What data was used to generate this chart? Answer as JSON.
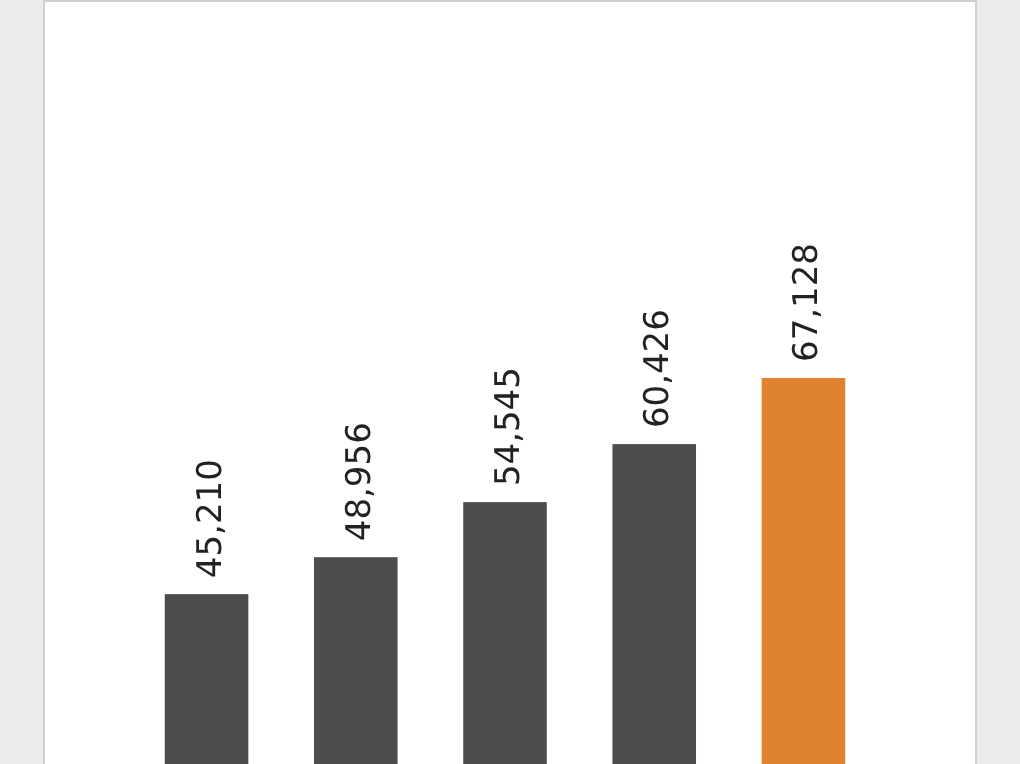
{
  "chart_data": {
    "type": "bar",
    "categories": [
      null,
      null,
      null,
      null,
      null
    ],
    "values": [
      45210,
      48956,
      54545,
      60426,
      67128
    ],
    "value_labels": [
      "45,210",
      "48,956",
      "54,545",
      "60,426",
      "67,128"
    ],
    "colors": [
      "#4d4d4d",
      "#4d4d4d",
      "#4d4d4d",
      "#4d4d4d",
      "#e0832f"
    ]
  }
}
